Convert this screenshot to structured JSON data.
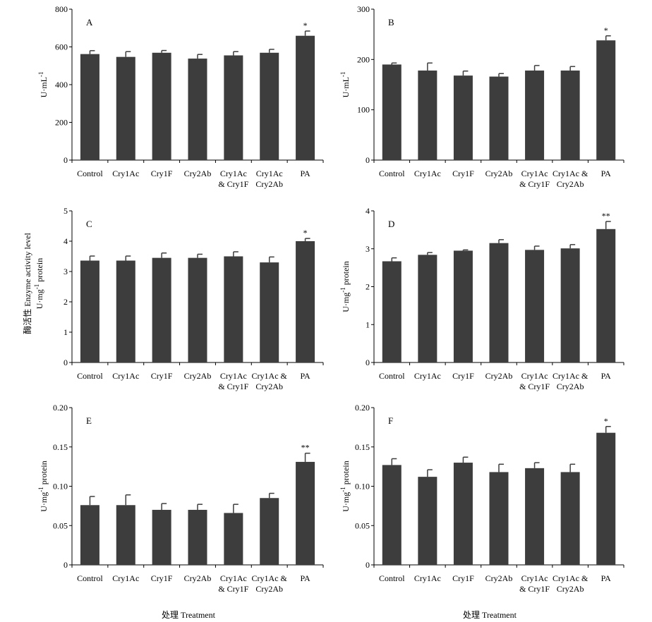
{
  "figure": {
    "shared_ylabel_line1": "酶活性 Enzyme activity level",
    "shared_ylabel_line2": "U·mg-1 protein",
    "xtitle_left": "处理 Treatment",
    "xtitle_right": "处理 Treatment"
  },
  "colors": {
    "bar": "#3d3d3d",
    "axis": "#000000"
  },
  "chart_data": [
    {
      "id": "A",
      "type": "bar",
      "panel_label": "A",
      "ylabel": "U·mL-1",
      "ylim": [
        0,
        800
      ],
      "yticks": [
        0,
        200,
        400,
        600,
        800
      ],
      "ytick_labels": [
        "0",
        "200",
        "400",
        "600",
        "800"
      ],
      "categories": [
        [
          "Control"
        ],
        [
          "Cry1Ac"
        ],
        [
          "Cry1F"
        ],
        [
          "Cry2Ab"
        ],
        [
          "Cry1Ac",
          "& Cry1F"
        ],
        [
          "Cry1Ac",
          "Cry2Ab"
        ],
        [
          "PA"
        ]
      ],
      "values": [
        562,
        547,
        569,
        538,
        555,
        569,
        659
      ],
      "errors": [
        18,
        28,
        12,
        22,
        20,
        18,
        25
      ],
      "significance": [
        "",
        "",
        "",
        "",
        "",
        "",
        "*"
      ]
    },
    {
      "id": "B",
      "type": "bar",
      "panel_label": "B",
      "ylabel": "U·mL-1",
      "ylim": [
        0,
        300
      ],
      "yticks": [
        0,
        100,
        200,
        300
      ],
      "ytick_labels": [
        "0",
        "100",
        "200",
        "300"
      ],
      "categories": [
        [
          "Control"
        ],
        [
          "Cry1Ac"
        ],
        [
          "Cry1F"
        ],
        [
          "Cry2Ab"
        ],
        [
          "Cry1Ac",
          "& Cry1F"
        ],
        [
          "Cry1Ac &",
          "Cry2Ab"
        ],
        [
          "PA"
        ]
      ],
      "values": [
        190,
        178,
        168,
        166,
        178,
        178,
        238
      ],
      "errors": [
        3,
        15,
        9,
        6,
        10,
        8,
        9
      ],
      "significance": [
        "",
        "",
        "",
        "",
        "",
        "",
        "*"
      ]
    },
    {
      "id": "C",
      "type": "bar",
      "panel_label": "C",
      "ylabel": "",
      "ylim": [
        0,
        5
      ],
      "yticks": [
        0,
        1,
        2,
        3,
        4,
        5
      ],
      "ytick_labels": [
        "0",
        "1",
        "2",
        "3",
        "4",
        "5"
      ],
      "categories": [
        [
          "Control"
        ],
        [
          "Cry1Ac"
        ],
        [
          "Cry1F"
        ],
        [
          "Cry2Ab"
        ],
        [
          "Cry1Ac",
          "& Cry1F"
        ],
        [
          "Cry1Ac &",
          "Cry2Ab"
        ],
        [
          "PA"
        ]
      ],
      "values": [
        3.36,
        3.36,
        3.45,
        3.45,
        3.5,
        3.3,
        4.0
      ],
      "errors": [
        0.15,
        0.15,
        0.16,
        0.12,
        0.15,
        0.18,
        0.09
      ],
      "significance": [
        "",
        "",
        "",
        "",
        "",
        "",
        "*"
      ]
    },
    {
      "id": "D",
      "type": "bar",
      "panel_label": "D",
      "ylabel": "U·mg-1 protein",
      "ylim": [
        0,
        4
      ],
      "yticks": [
        0,
        1,
        2,
        3,
        4
      ],
      "ytick_labels": [
        "0",
        "1",
        "2",
        "3",
        "4"
      ],
      "categories": [
        [
          "Control"
        ],
        [
          "Cry1Ac"
        ],
        [
          "Cry1F"
        ],
        [
          "Cry2Ab"
        ],
        [
          "Cry1Ac",
          "& Cry1F"
        ],
        [
          "Cry1Ac &",
          "Cry2Ab"
        ],
        [
          "PA"
        ]
      ],
      "values": [
        2.67,
        2.84,
        2.95,
        3.15,
        2.97,
        3.01,
        3.52
      ],
      "errors": [
        0.09,
        0.06,
        0.02,
        0.09,
        0.1,
        0.1,
        0.2
      ],
      "significance": [
        "",
        "",
        "",
        "",
        "",
        "",
        "**"
      ]
    },
    {
      "id": "E",
      "type": "bar",
      "panel_label": "E",
      "ylabel": "U·mg-1 protein",
      "ylim": [
        0,
        0.2
      ],
      "yticks": [
        0,
        0.05,
        0.1,
        0.15,
        0.2
      ],
      "ytick_labels": [
        "0",
        "0.05",
        "0.10",
        "0.15",
        "0.20"
      ],
      "categories": [
        [
          "Control"
        ],
        [
          "Cry1Ac"
        ],
        [
          "Cry1F"
        ],
        [
          "Cry2Ab"
        ],
        [
          "Cry1Ac",
          "& Cry1F"
        ],
        [
          "Cry1Ac &",
          "Cry2Ab"
        ],
        [
          "PA"
        ]
      ],
      "values": [
        0.076,
        0.076,
        0.07,
        0.07,
        0.066,
        0.085,
        0.131
      ],
      "errors": [
        0.011,
        0.013,
        0.008,
        0.007,
        0.011,
        0.006,
        0.011
      ],
      "significance": [
        "",
        "",
        "",
        "",
        "",
        "",
        "**"
      ]
    },
    {
      "id": "F",
      "type": "bar",
      "panel_label": "F",
      "ylabel": "U·mg-1 protein",
      "ylim": [
        0,
        0.2
      ],
      "yticks": [
        0,
        0.05,
        0.1,
        0.15,
        0.2
      ],
      "ytick_labels": [
        "0",
        "0.05",
        "0.10",
        "0.15",
        "0.20"
      ],
      "categories": [
        [
          "Control"
        ],
        [
          "Cry1Ac"
        ],
        [
          "Cry1F"
        ],
        [
          "Cry2Ab"
        ],
        [
          "Cry1Ac",
          "& Cry1F"
        ],
        [
          "Cry1Ac &",
          "Cry2Ab"
        ],
        [
          "PA"
        ]
      ],
      "values": [
        0.127,
        0.112,
        0.13,
        0.118,
        0.123,
        0.118,
        0.168
      ],
      "errors": [
        0.008,
        0.009,
        0.007,
        0.01,
        0.007,
        0.01,
        0.008
      ],
      "significance": [
        "",
        "",
        "",
        "",
        "",
        "",
        "*"
      ]
    }
  ]
}
